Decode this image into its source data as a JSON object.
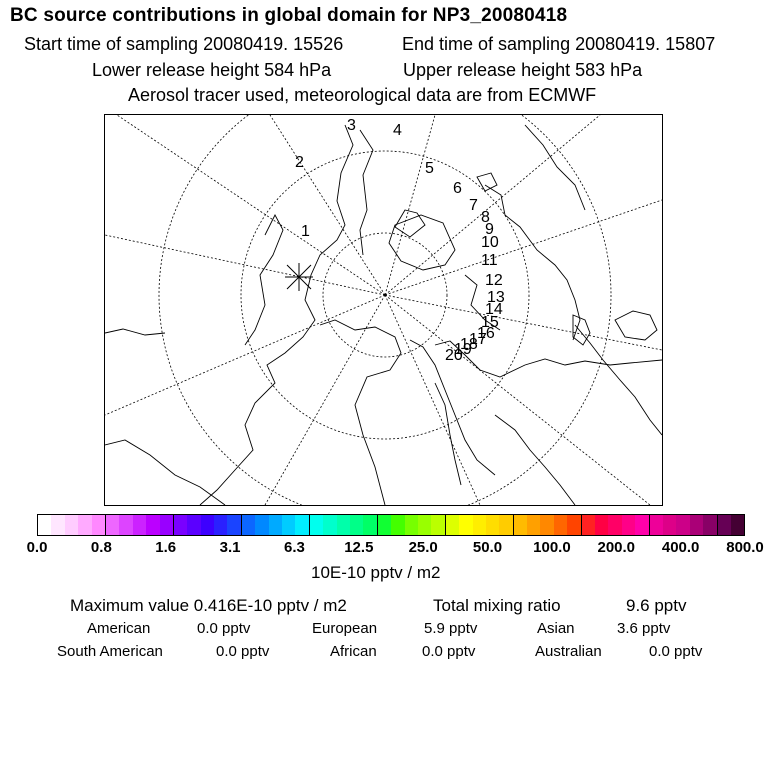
{
  "header": {
    "title": "BC  source contributions in global domain for NP3_20080418",
    "start_time": "Start time of sampling 20080419. 15526",
    "end_time": "End time of sampling 20080419. 15807",
    "lower_height": "Lower release height  584 hPa",
    "upper_height": "Upper release height  583 hPa",
    "tracer_note": "Aerosol tracer used, meteorological data are from ECMWF"
  },
  "map": {
    "projection": "north polar stereographic",
    "receptor_marker": "asterisk",
    "trajectory_labels": [
      "1",
      "2",
      "3",
      "4",
      "5",
      "6",
      "7",
      "8",
      "9",
      "10",
      "11",
      "12",
      "13",
      "14",
      "15",
      "16",
      "17",
      "18",
      "19",
      "20"
    ]
  },
  "colorbar": {
    "tick_labels": [
      "0.0",
      "0.8",
      "1.6",
      "3.1",
      "6.3",
      "12.5",
      "25.0",
      "50.0",
      "100.0",
      "200.0",
      "400.0",
      "800.0"
    ],
    "colors": [
      "#ffffff",
      "#ffe6ff",
      "#ffccff",
      "#ffaaff",
      "#ff88ff",
      "#ee66ff",
      "#dd44ff",
      "#cc22ff",
      "#bb00ff",
      "#9900ff",
      "#7a00ff",
      "#5b00ff",
      "#3d00ff",
      "#2a20ff",
      "#1a44ff",
      "#0c66ff",
      "#0088ff",
      "#00aaff",
      "#00ccff",
      "#00eeff",
      "#00ffee",
      "#00ffcc",
      "#00ffaa",
      "#00ff88",
      "#00ff66",
      "#11ff33",
      "#44ff00",
      "#77ff00",
      "#99ff00",
      "#bbff00",
      "#ddff00",
      "#ffff00",
      "#ffee00",
      "#ffdd00",
      "#ffcc00",
      "#ffbb00",
      "#ffa000",
      "#ff8800",
      "#ff6600",
      "#ff4400",
      "#ff2222",
      "#ff0044",
      "#ff0066",
      "#ff0088",
      "#ff00aa",
      "#ee0099",
      "#dd0088",
      "#cc0088",
      "#aa0077",
      "#880066",
      "#660055",
      "#440033"
    ],
    "units": "10E-10 pptv / m2"
  },
  "summary": {
    "max_value": "Maximum value  0.416E-10 pptv / m2",
    "total_label": "Total mixing ratio",
    "total_value": "9.6 pptv",
    "regions": [
      {
        "name": "American",
        "value": "0.0 pptv"
      },
      {
        "name": "European",
        "value": "5.9 pptv"
      },
      {
        "name": "Asian",
        "value": "3.6 pptv"
      },
      {
        "name": "South American",
        "value": "0.0 pptv"
      },
      {
        "name": "African",
        "value": "0.0 pptv"
      },
      {
        "name": "Australian",
        "value": "0.0 pptv"
      }
    ]
  }
}
